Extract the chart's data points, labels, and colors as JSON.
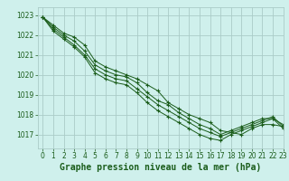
{
  "xlabel": "Graphe pression niveau de la mer (hPa)",
  "ylim": [
    1016.3,
    1023.4
  ],
  "xlim": [
    -0.5,
    23
  ],
  "bg_color": "#cff0ec",
  "grid_color": "#aaccc8",
  "line_color": "#1a5c1a",
  "series": [
    [
      1022.9,
      1022.5,
      1022.1,
      1021.9,
      1021.5,
      1020.7,
      1020.4,
      1020.2,
      1020.0,
      1019.8,
      1019.5,
      1019.2,
      1018.6,
      1018.3,
      1018.0,
      1017.8,
      1017.6,
      1017.2,
      1017.1,
      1017.0,
      1017.3,
      1017.5,
      1017.5,
      1017.4
    ],
    [
      1022.9,
      1022.4,
      1022.0,
      1021.7,
      1021.2,
      1020.5,
      1020.2,
      1020.0,
      1019.9,
      1019.6,
      1019.1,
      1018.7,
      1018.5,
      1018.1,
      1017.8,
      1017.5,
      1017.3,
      1017.0,
      1017.2,
      1017.4,
      1017.6,
      1017.8,
      1017.8,
      1017.5
    ],
    [
      1022.9,
      1022.3,
      1021.9,
      1021.5,
      1021.0,
      1020.3,
      1020.0,
      1019.8,
      1019.7,
      1019.3,
      1018.9,
      1018.5,
      1018.2,
      1017.9,
      1017.6,
      1017.3,
      1017.1,
      1016.9,
      1017.1,
      1017.3,
      1017.5,
      1017.7,
      1017.9,
      1017.4
    ],
    [
      1022.9,
      1022.2,
      1021.8,
      1021.4,
      1020.9,
      1020.1,
      1019.8,
      1019.6,
      1019.5,
      1019.1,
      1018.6,
      1018.2,
      1017.9,
      1017.6,
      1017.3,
      1017.0,
      1016.8,
      1016.7,
      1017.0,
      1017.2,
      1017.4,
      1017.6,
      1017.8,
      1017.3
    ]
  ],
  "yticks": [
    1017,
    1018,
    1019,
    1020,
    1021,
    1022,
    1023
  ],
  "xtick_labels": [
    "0",
    "1",
    "2",
    "3",
    "4",
    "5",
    "6",
    "7",
    "8",
    "9",
    "10",
    "11",
    "12",
    "13",
    "14",
    "15",
    "16",
    "17",
    "18",
    "19",
    "20",
    "21",
    "22",
    "23"
  ],
  "xticks": [
    0,
    1,
    2,
    3,
    4,
    5,
    6,
    7,
    8,
    9,
    10,
    11,
    12,
    13,
    14,
    15,
    16,
    17,
    18,
    19,
    20,
    21,
    22,
    23
  ],
  "tick_fontsize": 5.5,
  "xlabel_fontsize": 7.0,
  "ytick_fontsize": 5.5
}
